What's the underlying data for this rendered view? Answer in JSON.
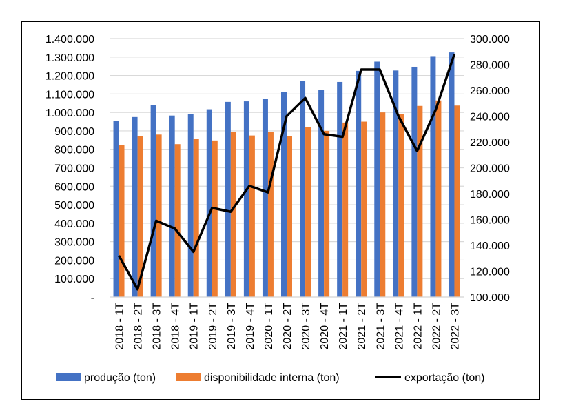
{
  "chart_data": {
    "type": "bar",
    "categories": [
      "2018 - 1T",
      "2018 - 2T",
      "2018 - 3T",
      "2018 - 4T",
      "2019 - 1T",
      "2019 - 2T",
      "2019 - 3T",
      "2019 - 4T",
      "2020 - 1T",
      "2020 - 2T",
      "2020 - 3T",
      "2020 - 4T",
      "2021 - 1T",
      "2021 - 2T",
      "2021 - 3T",
      "2021 - 4T",
      "2022 - 1T",
      "2022 - 2T",
      "2022 - 3T"
    ],
    "series": [
      {
        "name": "produção (ton)",
        "type": "bar",
        "axis": "left",
        "color": "#4472C4",
        "values": [
          955000,
          975000,
          1040000,
          983000,
          993000,
          1017000,
          1057000,
          1060000,
          1072000,
          1110000,
          1170000,
          1123000,
          1165000,
          1225000,
          1275000,
          1227000,
          1247000,
          1305000,
          1325000
        ]
      },
      {
        "name": "disponibilidade interna (ton)",
        "type": "bar",
        "axis": "left",
        "color": "#ED7D31",
        "values": [
          825000,
          870000,
          880000,
          828000,
          857000,
          848000,
          893000,
          875000,
          893000,
          870000,
          920000,
          900000,
          945000,
          950000,
          1000000,
          990000,
          1035000,
          1065000,
          1037000
        ]
      },
      {
        "name": "exportação (ton)",
        "type": "line",
        "axis": "right",
        "color": "#000000",
        "values": [
          132000,
          106000,
          159000,
          153000,
          135000,
          169000,
          166000,
          186000,
          181000,
          240000,
          254000,
          226000,
          224000,
          276000,
          276000,
          240000,
          213000,
          245000,
          288000
        ]
      }
    ],
    "left_axis": {
      "range": [
        0,
        1400000
      ],
      "ticks": [
        "-",
        "100.000",
        "200.000",
        "300.000",
        "400.000",
        "500.000",
        "600.000",
        "700.000",
        "800.000",
        "900.000",
        "1.000.000",
        "1.100.000",
        "1.200.000",
        "1.300.000",
        "1.400.000"
      ]
    },
    "right_axis": {
      "range": [
        100000,
        300000
      ],
      "ticks": [
        "100.000",
        "120.000",
        "140.000",
        "160.000",
        "180.000",
        "200.000",
        "220.000",
        "240.000",
        "260.000",
        "280.000",
        "300.000"
      ]
    },
    "grid": true,
    "legend": "bottom"
  }
}
